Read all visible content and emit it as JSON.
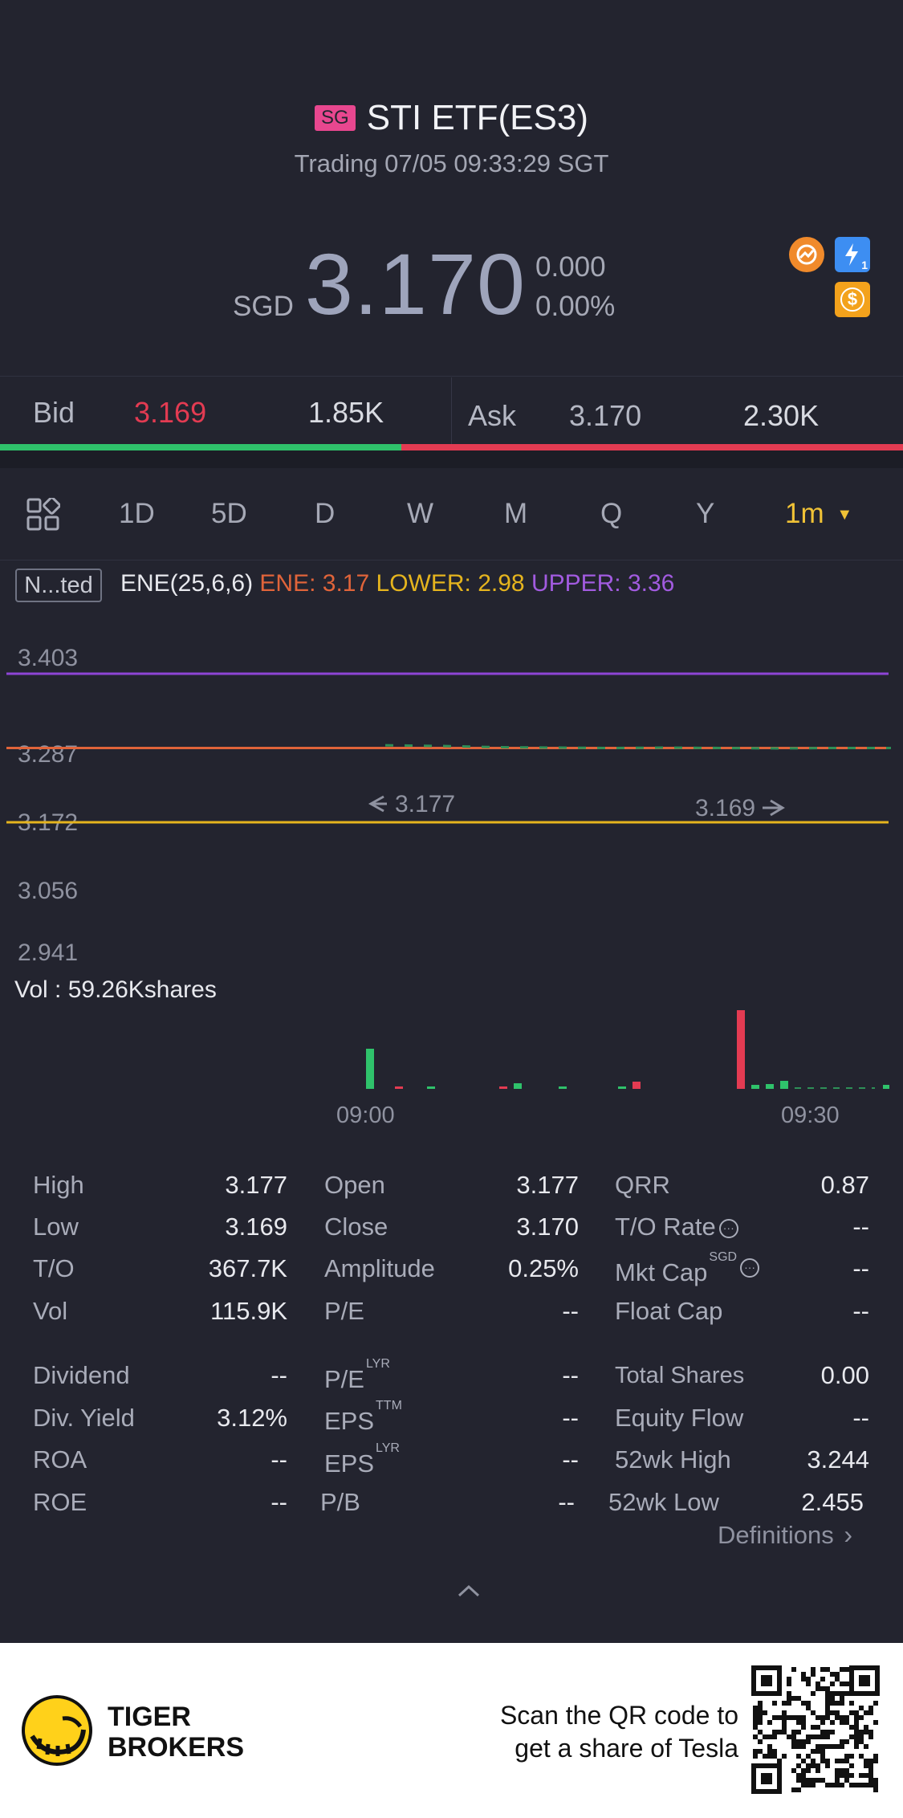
{
  "header": {
    "region_badge": "SG",
    "title": "STI ETF(ES3)",
    "status": "Trading 07/05 09:33:29 SGT",
    "currency": "SGD",
    "price": "3.170",
    "change": "0.000",
    "change_pct": "0.00%",
    "icon_bolt_sub": "1",
    "icon_dollar": "$"
  },
  "bidask": {
    "bid_label": "Bid",
    "bid_price": "3.169",
    "bid_size": "1.85K",
    "ask_label": "Ask",
    "ask_price": "3.170",
    "ask_size": "2.30K",
    "bid_share": 0.444
  },
  "periods": {
    "tabs": [
      "1D",
      "5D",
      "D",
      "W",
      "M",
      "Q",
      "Y"
    ],
    "active": "1m"
  },
  "indicator": {
    "box_label": "N...ted",
    "name": "ENE(25,6,6)",
    "ene_label": "ENE: 3.17",
    "lower_label": "LOWER: 2.98",
    "upper_label": "UPPER: 3.36"
  },
  "colors": {
    "upper": "#8e45d6",
    "ene": "#e0643a",
    "lower": "#e5b41e",
    "up": "#e33b52",
    "down": "#2fc26b",
    "accent": "#f0c236"
  },
  "chart": {
    "volume_title": "Vol  : 59.26Kshares",
    "high_marker": "3.177",
    "low_marker": "3.169"
  },
  "chart_data": {
    "type": "line",
    "y_ticks": [
      "3.403",
      "3.287",
      "3.172",
      "3.056",
      "2.941"
    ],
    "x_ticks": [
      "09:00",
      "09:30"
    ],
    "ylim": [
      2.941,
      3.403
    ],
    "series": [
      {
        "name": "UPPER",
        "values": [
          3.36,
          3.36
        ]
      },
      {
        "name": "ENE",
        "values": [
          3.17,
          3.17
        ]
      },
      {
        "name": "LOWER",
        "values": [
          2.98,
          2.98
        ]
      }
    ],
    "price_line": [
      3.177,
      3.175,
      3.172,
      3.171,
      3.17,
      3.171,
      3.17,
      3.169,
      3.17,
      3.17
    ]
  },
  "stats": {
    "col1": [
      {
        "label": "High",
        "value": "3.177"
      },
      {
        "label": "Low",
        "value": "3.169"
      },
      {
        "label": "T/O",
        "value": "367.7K"
      },
      {
        "label": "Vol",
        "value": "115.9K"
      },
      {
        "label": "Dividend",
        "value": "--"
      },
      {
        "label": "Div. Yield",
        "value": "3.12%"
      },
      {
        "label": "ROA",
        "value": "--"
      },
      {
        "label": "ROE",
        "value": "--"
      }
    ],
    "col2": [
      {
        "label": "Open",
        "value": "3.177"
      },
      {
        "label": "Close",
        "value": "3.170"
      },
      {
        "label": "Amplitude",
        "value": "0.25%"
      },
      {
        "label": "P/E",
        "value": "--"
      },
      {
        "label": "P/E",
        "sup": "LYR",
        "value": "--"
      },
      {
        "label": "EPS",
        "sup": "TTM",
        "value": "--"
      },
      {
        "label": "EPS",
        "sup": "LYR",
        "value": "--"
      },
      {
        "label": "P/B",
        "value": "--"
      }
    ],
    "col3": [
      {
        "label": "QRR",
        "value": "0.87"
      },
      {
        "label": "T/O Rate",
        "value": "--"
      },
      {
        "label": "Mkt Cap",
        "sup": "SGD",
        "value": "--"
      },
      {
        "label": "Float Cap",
        "value": "--"
      },
      {
        "label": "Total Shares",
        "value": "0.00"
      },
      {
        "label": "Equity Flow",
        "value": "--"
      },
      {
        "label": "52wk High",
        "value": "3.244"
      },
      {
        "label": "52wk Low",
        "value": "2.455"
      }
    ],
    "definitions": "Definitions"
  },
  "footer": {
    "brand_line1": "TIGER",
    "brand_line2": "BROKERS",
    "scan_line1": "Scan the QR code to",
    "scan_line2": "get a share of Tesla"
  }
}
